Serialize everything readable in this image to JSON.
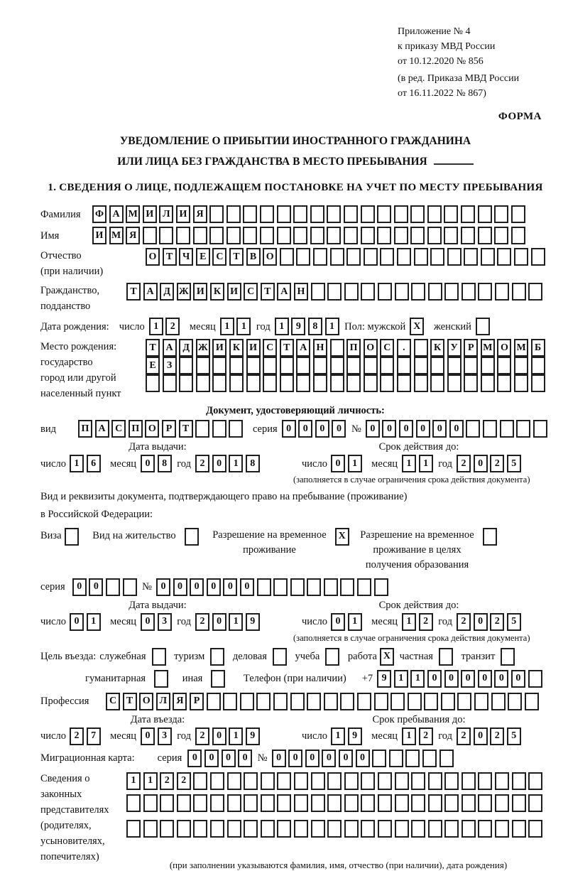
{
  "header": {
    "appendix_line1": "Приложение № 4",
    "appendix_line2": "к приказу МВД России",
    "appendix_line3": "от 10.12.2020 № 856",
    "edition_line1": "(в ред. Приказа МВД России",
    "edition_line2": "от 16.11.2022 № 867)",
    "form_label": "ФОРМА"
  },
  "title": {
    "line1": "УВЕДОМЛЕНИЕ О ПРИБЫТИИ ИНОСТРАННОГО ГРАЖДАНИНА",
    "line2": "ИЛИ ЛИЦА БЕЗ ГРАЖДАНСТВА В МЕСТО ПРЕБЫВАНИЯ",
    "section1": "1. СВЕДЕНИЯ О ЛИЦЕ, ПОДЛЕЖАЩЕМ ПОСТАНОВКЕ НА УЧЕТ ПО МЕСТУ ПРЕБЫВАНИЯ"
  },
  "labels": {
    "surname": "Фамилия",
    "name": "Имя",
    "patronymic": "Отчество",
    "patronymic_note": "(при наличии)",
    "citizenship1": "Гражданство,",
    "citizenship2": "подданство",
    "birth_date": "Дата рождения:",
    "day": "число",
    "month": "месяц",
    "year": "год",
    "sex_male": "Пол: мужской",
    "sex_female": "женский",
    "birthplace1": "Место рождения:",
    "birthplace2": "государство",
    "birthplace3": "город или другой",
    "birthplace4": "населенный пункт",
    "iddoc_heading": "Документ, удостоверяющий личность:",
    "kind": "вид",
    "series": "серия",
    "number": "№",
    "issue_date": "Дата выдачи:",
    "valid_until": "Срок действия до:",
    "valid_note": "(заполняется в случае ограничения срока действия документа)",
    "resdoc_line1": "Вид и реквизиты документа, подтверждающего право на пребывание (проживание)",
    "resdoc_line2": "в Российской Федерации:",
    "visa": "Виза",
    "residence_permit": "Вид на жительство",
    "temp_permit_1": "Разрешение на временное",
    "temp_permit_2": "проживание",
    "edu_permit_1": "Разрешение на временное",
    "edu_permit_2": "проживание в целях",
    "edu_permit_3": "получения образования",
    "purpose": "Цель въезда:",
    "purpose_business": "служебная",
    "purpose_tourism": "туризм",
    "purpose_commercial": "деловая",
    "purpose_study": "учеба",
    "purpose_work": "работа",
    "purpose_private": "частная",
    "purpose_transit": "транзит",
    "purpose_humanitarian": "гуманитарная",
    "purpose_other": "иная",
    "phone": "Телефон (при наличии)",
    "phone_prefix": "+7",
    "profession": "Профессия",
    "entry_date": "Дата въезда:",
    "stay_until": "Срок пребывания до:",
    "migration_card": "Миграционная карта:",
    "reps1": "Сведения о",
    "reps2": "законных",
    "reps3": "представителях",
    "reps4": "(родителях,",
    "reps5": "усыновителях,",
    "reps6": "попечителях)",
    "reps_note": "(при заполнении указываются фамилия, имя, отчество (при наличии), дата рождения)"
  },
  "fields": {
    "surname": {
      "value": "ФАМИЛИЯ",
      "len": 26
    },
    "name": {
      "value": "ИМЯ",
      "len": 26
    },
    "patronymic": {
      "value": "ОТЧЕСТВО",
      "len": 24
    },
    "citizenship": {
      "value": "ТАДЖИКИСТАН",
      "len": 25
    },
    "birth_day": {
      "value": "12",
      "len": 2
    },
    "birth_month": {
      "value": "11",
      "len": 2
    },
    "birth_year": {
      "value": "1981",
      "len": 4
    },
    "sex_male": {
      "value": "X",
      "len": 1
    },
    "sex_female": {
      "value": "",
      "len": 1
    },
    "birthplace_row1": {
      "value": "ТАДЖИКИСТАН ПОС. КУРМОМБ",
      "len": 24
    },
    "birthplace_row2": {
      "value": "ЕЗ",
      "len": 24
    },
    "birthplace_row3": {
      "value": "",
      "len": 24
    },
    "iddoc_kind": {
      "value": "ПАСПОРТ",
      "len": 10
    },
    "iddoc_series": {
      "value": "0000",
      "len": 4
    },
    "iddoc_number": {
      "value": "000000",
      "len": 11
    },
    "iddoc_issue_day": {
      "value": "16",
      "len": 2
    },
    "iddoc_issue_month": {
      "value": "08",
      "len": 2
    },
    "iddoc_issue_year": {
      "value": "2018",
      "len": 4
    },
    "iddoc_valid_day": {
      "value": "01",
      "len": 2
    },
    "iddoc_valid_month": {
      "value": "11",
      "len": 2
    },
    "iddoc_valid_year": {
      "value": "2025",
      "len": 4
    },
    "visa_cb": {
      "value": "",
      "len": 1
    },
    "residence_cb": {
      "value": "",
      "len": 1
    },
    "temp_permit_cb": {
      "value": "X",
      "len": 1
    },
    "edu_permit_cb": {
      "value": "",
      "len": 1
    },
    "resdoc_series": {
      "value": "00",
      "len": 4
    },
    "resdoc_number": {
      "value": "000000",
      "len": 14
    },
    "resdoc_issue_day": {
      "value": "01",
      "len": 2
    },
    "resdoc_issue_month": {
      "value": "03",
      "len": 2
    },
    "resdoc_issue_year": {
      "value": "2019",
      "len": 4
    },
    "resdoc_valid_day": {
      "value": "01",
      "len": 2
    },
    "resdoc_valid_month": {
      "value": "12",
      "len": 2
    },
    "resdoc_valid_year": {
      "value": "2025",
      "len": 4
    },
    "purpose_business_cb": {
      "value": "",
      "len": 1
    },
    "purpose_tourism_cb": {
      "value": "",
      "len": 1
    },
    "purpose_commercial_cb": {
      "value": "",
      "len": 1
    },
    "purpose_study_cb": {
      "value": "",
      "len": 1
    },
    "purpose_work_cb": {
      "value": "X",
      "len": 1
    },
    "purpose_private_cb": {
      "value": "",
      "len": 1
    },
    "purpose_transit_cb": {
      "value": "",
      "len": 1
    },
    "purpose_humanitarian_cb": {
      "value": "",
      "len": 1
    },
    "purpose_other_cb": {
      "value": "",
      "len": 1
    },
    "phone": {
      "value": "911000000",
      "len": 10
    },
    "profession": {
      "value": "СТОЛЯР",
      "len": 26
    },
    "entry_day": {
      "value": "27",
      "len": 2
    },
    "entry_month": {
      "value": "03",
      "len": 2
    },
    "entry_year": {
      "value": "2019",
      "len": 4
    },
    "stay_day": {
      "value": "19",
      "len": 2
    },
    "stay_month": {
      "value": "12",
      "len": 2
    },
    "stay_year": {
      "value": "2025",
      "len": 4
    },
    "mig_series": {
      "value": "0000",
      "len": 4
    },
    "mig_number": {
      "value": "000000",
      "len": 11
    },
    "reps_row1": {
      "value": "1122",
      "len": 25
    },
    "reps_row2": {
      "value": "",
      "len": 25
    },
    "reps_row3": {
      "value": "",
      "len": 25
    }
  }
}
